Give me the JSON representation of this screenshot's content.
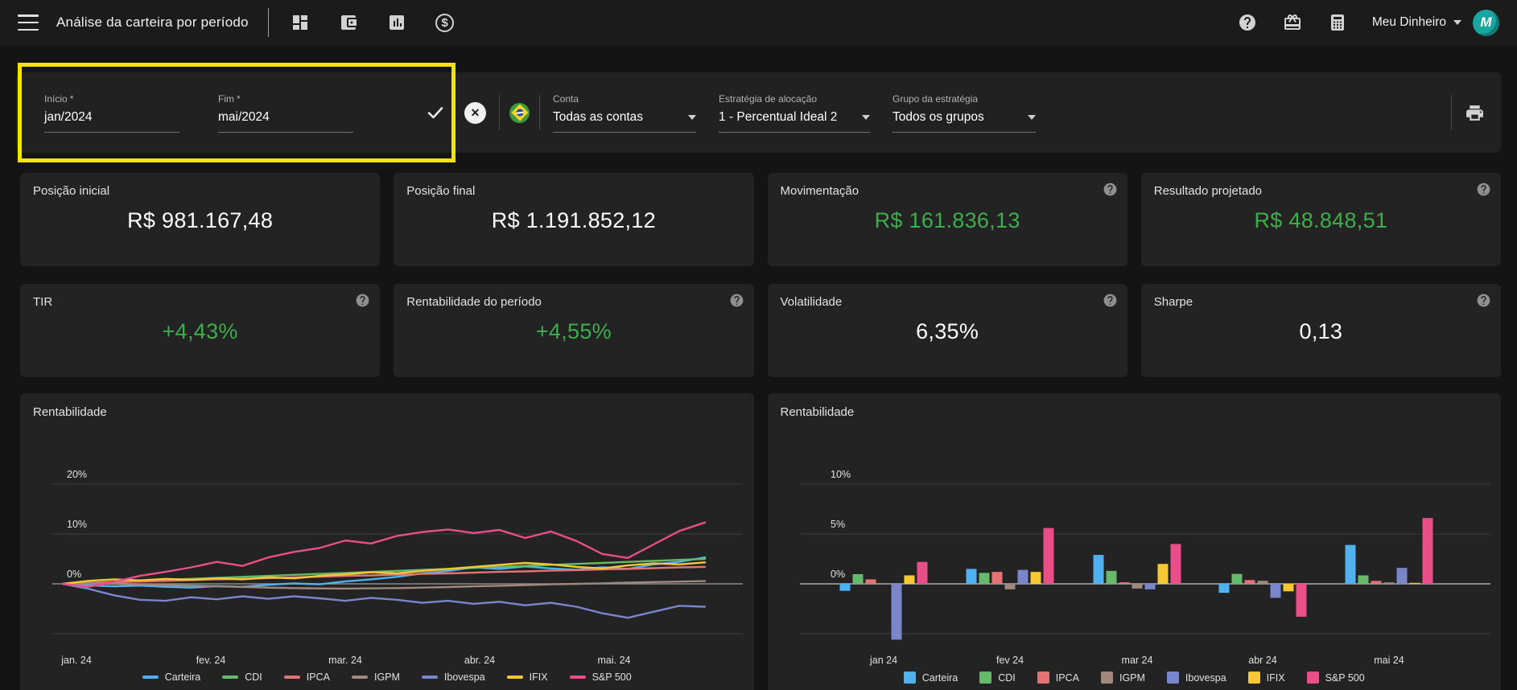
{
  "topbar": {
    "title": "Análise da carteira por período",
    "account_name": "Meu Dinheiro"
  },
  "filters": {
    "inicio": {
      "label": "Início",
      "required": "*",
      "value": "jan/2024"
    },
    "fim": {
      "label": "Fim",
      "required": "*",
      "value": "mai/2024"
    },
    "conta": {
      "label": "Conta",
      "value": "Todas as contas"
    },
    "estrategia": {
      "label": "Estratégia de alocação",
      "value": "1 - Percentual Ideal 2"
    },
    "grupo": {
      "label": "Grupo da estratégia",
      "value": "Todos os grupos"
    }
  },
  "kpis": [
    {
      "id": "posicao-inicial",
      "label": "Posição inicial",
      "value": "R$ 981.167,48",
      "green": false,
      "help": false
    },
    {
      "id": "posicao-final",
      "label": "Posição final",
      "value": "R$ 1.191.852,12",
      "green": false,
      "help": false
    },
    {
      "id": "movimentacao",
      "label": "Movimentação",
      "value": "R$ 161.836,13",
      "green": true,
      "help": true
    },
    {
      "id": "resultado-projetado",
      "label": "Resultado projetado",
      "value": "R$ 48.848,51",
      "green": true,
      "help": true
    },
    {
      "id": "tir",
      "label": "TIR",
      "value": "+4,43%",
      "green": true,
      "help": true
    },
    {
      "id": "rentabilidade-periodo",
      "label": "Rentabilidade do período",
      "value": "+4,55%",
      "green": true,
      "help": true
    },
    {
      "id": "volatilidade",
      "label": "Volatilidade",
      "value": "6,35%",
      "green": false,
      "help": true
    },
    {
      "id": "sharpe",
      "label": "Sharpe",
      "value": "0,13",
      "green": false,
      "help": true
    }
  ],
  "colors": {
    "positive_value": "#3cae4b",
    "highlight_box": "#f3e500",
    "card_bg": "#232323",
    "topbar_bg": "#1b1b1b",
    "page_bg": "#141414"
  },
  "chart_data": [
    {
      "type": "line",
      "title": "Rentabilidade",
      "unit": "%",
      "x_tick_labels": [
        "jan. 24",
        "fev. 24",
        "mar. 24",
        "abr. 24",
        "mai. 24"
      ],
      "ytick_labels": [
        "20%",
        "10%",
        "0%"
      ],
      "ytick_values": [
        20,
        10,
        0
      ],
      "ylim": [
        -10,
        20
      ],
      "grid": true,
      "legend_position": "bottom",
      "series": [
        {
          "name": "Carteira",
          "color": "#4FB1F0",
          "values": [
            0,
            -0.3,
            -0.5,
            -0.35,
            -0.6,
            -0.75,
            -0.45,
            -0.6,
            -0.2,
            0.1,
            -0.1,
            0.5,
            0.9,
            1.4,
            2.1,
            2.6,
            3.3,
            3.0,
            3.5,
            3.1,
            2.8,
            3.3,
            3.0,
            3.9,
            4.4,
            5.3
          ]
        },
        {
          "name": "CDI",
          "color": "#66BB6A",
          "values": [
            0,
            0.2,
            0.4,
            0.6,
            0.8,
            1.0,
            1.2,
            1.4,
            1.6,
            1.8,
            2.0,
            2.2,
            2.4,
            2.6,
            2.8,
            3.0,
            3.2,
            3.4,
            3.6,
            3.8,
            4.0,
            4.2,
            4.4,
            4.6,
            4.8,
            5.0
          ]
        },
        {
          "name": "IPCA",
          "color": "#E57373",
          "values": [
            0,
            0.15,
            0.3,
            0.45,
            0.6,
            0.75,
            0.9,
            1.0,
            1.15,
            1.3,
            1.45,
            1.6,
            1.7,
            1.85,
            2.0,
            2.1,
            2.25,
            2.4,
            2.5,
            2.65,
            2.75,
            2.9,
            3.0,
            3.15,
            3.3,
            3.4
          ]
        },
        {
          "name": "IGPM",
          "color": "#A1887F",
          "values": [
            0,
            0.05,
            0.02,
            -0.1,
            -0.25,
            -0.35,
            -0.5,
            -0.62,
            -0.75,
            -0.85,
            -0.92,
            -0.95,
            -0.9,
            -0.85,
            -0.75,
            -0.65,
            -0.5,
            -0.38,
            -0.25,
            -0.1,
            0,
            0.1,
            0.25,
            0.35,
            0.45,
            0.55
          ]
        },
        {
          "name": "Ibovespa",
          "color": "#7986CB",
          "values": [
            0,
            -1.0,
            -2.3,
            -3.2,
            -3.4,
            -2.7,
            -3.1,
            -2.5,
            -3.0,
            -2.5,
            -2.9,
            -3.4,
            -2.8,
            -3.2,
            -3.8,
            -3.4,
            -4.0,
            -3.6,
            -4.3,
            -3.8,
            -4.6,
            -5.9,
            -6.8,
            -5.6,
            -4.4,
            -4.6
          ]
        },
        {
          "name": "IFIX",
          "color": "#F8C833",
          "values": [
            0,
            0.6,
            0.9,
            0.7,
            1.0,
            0.8,
            1.1,
            0.9,
            1.3,
            1.1,
            1.6,
            1.9,
            2.3,
            2.1,
            2.6,
            3.0,
            3.4,
            3.8,
            4.2,
            3.9,
            3.4,
            3.1,
            3.7,
            4.1,
            3.9,
            4.3
          ]
        },
        {
          "name": "S&P 500",
          "color": "#EA4E89",
          "values": [
            0,
            -0.6,
            0.4,
            1.6,
            2.4,
            3.3,
            4.4,
            3.6,
            5.3,
            6.4,
            7.2,
            8.7,
            8.1,
            9.6,
            10.4,
            10.9,
            10.2,
            10.8,
            9.2,
            10.5,
            8.6,
            6.0,
            5.2,
            7.9,
            10.6,
            12.3
          ]
        }
      ]
    },
    {
      "type": "bar",
      "title": "Rentabilidade",
      "unit": "%",
      "categories": [
        "jan 24",
        "fev 24",
        "mar 24",
        "abr 24",
        "mai 24"
      ],
      "ytick_labels": [
        "10%",
        "5%",
        "0%"
      ],
      "ytick_values": [
        10,
        5,
        0
      ],
      "ylim": [
        -7,
        12
      ],
      "grid": true,
      "legend_position": "bottom",
      "series": [
        {
          "name": "Carteira",
          "color": "#4FB1F0",
          "values": [
            -0.7,
            1.5,
            2.9,
            -0.9,
            3.9
          ]
        },
        {
          "name": "CDI",
          "color": "#66BB6A",
          "values": [
            0.97,
            1.1,
            1.3,
            1.0,
            0.85
          ]
        },
        {
          "name": "IPCA",
          "color": "#E57373",
          "values": [
            0.45,
            1.2,
            0.16,
            0.38,
            0.3
          ]
        },
        {
          "name": "IGPM",
          "color": "#A1887F",
          "values": [
            0.07,
            -0.55,
            -0.47,
            0.31,
            0.15
          ]
        },
        {
          "name": "Ibovespa",
          "color": "#7986CB",
          "values": [
            -5.6,
            1.4,
            -0.55,
            -1.4,
            1.6
          ]
        },
        {
          "name": "IFIX",
          "color": "#F8C833",
          "values": [
            0.85,
            1.2,
            2.0,
            -0.75,
            0.1
          ]
        },
        {
          "name": "S&P 500",
          "color": "#EA4E89",
          "values": [
            2.2,
            5.6,
            4.0,
            -3.3,
            6.6
          ]
        }
      ]
    }
  ]
}
